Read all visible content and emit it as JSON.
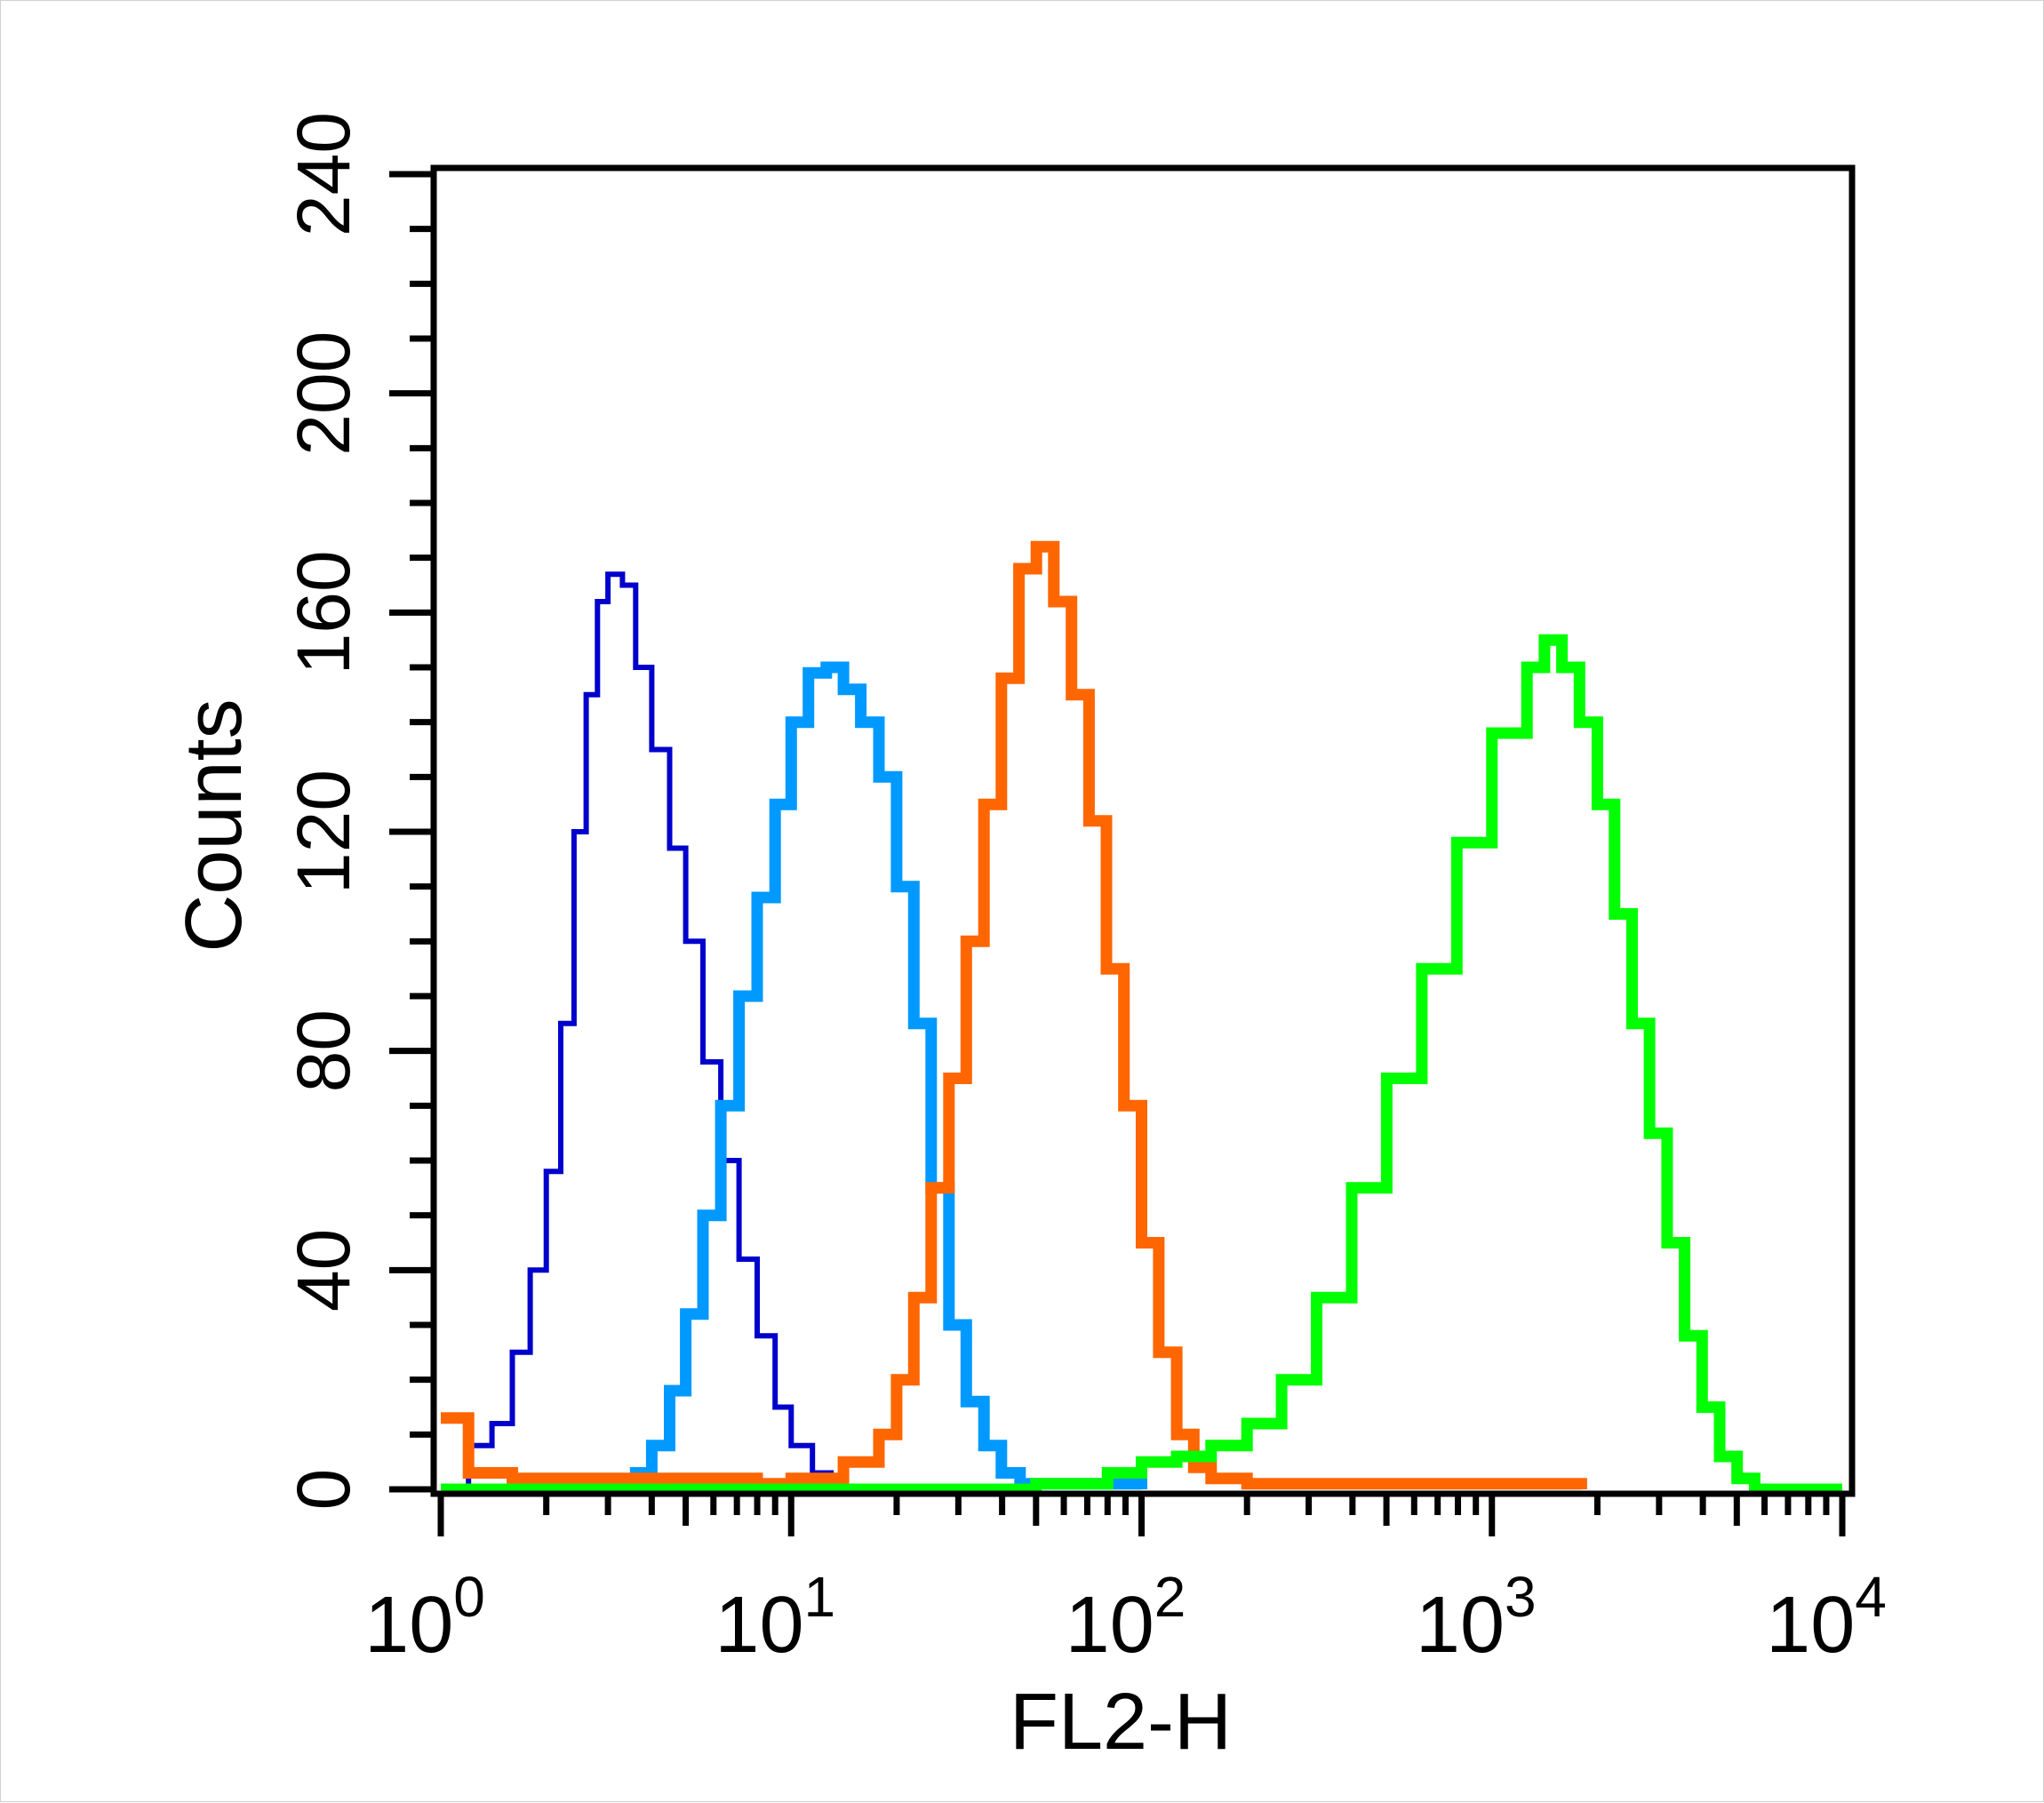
{
  "chart_data": {
    "type": "line",
    "title": "",
    "xlabel": "FL2-H",
    "ylabel": "Counts",
    "x_scale": "log10",
    "xlim": [
      1,
      10000
    ],
    "ylim": [
      0,
      240
    ],
    "grid": false,
    "legend": "none",
    "x_ticks": [
      {
        "base": "10",
        "exp": "0",
        "value": 1
      },
      {
        "base": "10",
        "exp": "1",
        "value": 10
      },
      {
        "base": "10",
        "exp": "2",
        "value": 100
      },
      {
        "base": "10",
        "exp": "3",
        "value": 1000
      },
      {
        "base": "10",
        "exp": "4",
        "value": 10000
      }
    ],
    "y_ticks": [
      {
        "label": "0",
        "value": 0
      },
      {
        "label": "40",
        "value": 40
      },
      {
        "label": "80",
        "value": 80
      },
      {
        "label": "120",
        "value": 120
      },
      {
        "label": "160",
        "value": 160
      },
      {
        "label": "200",
        "value": 200
      },
      {
        "label": "240",
        "value": 240
      }
    ],
    "series": [
      {
        "color": "#0000cc",
        "stroke": "thin",
        "points": [
          [
            1.1,
            0
          ],
          [
            1.2,
            8
          ],
          [
            1.4,
            12
          ],
          [
            1.6,
            25
          ],
          [
            1.8,
            40
          ],
          [
            2.0,
            58
          ],
          [
            2.2,
            85
          ],
          [
            2.4,
            120
          ],
          [
            2.6,
            145
          ],
          [
            2.8,
            162
          ],
          [
            3.0,
            167
          ],
          [
            3.3,
            165
          ],
          [
            3.6,
            150
          ],
          [
            4.0,
            135
          ],
          [
            4.5,
            117
          ],
          [
            5.0,
            100
          ],
          [
            5.6,
            78
          ],
          [
            6.3,
            60
          ],
          [
            7.1,
            42
          ],
          [
            8.0,
            28
          ],
          [
            9.0,
            15
          ],
          [
            10.0,
            8
          ],
          [
            11.5,
            3
          ],
          [
            13.0,
            0
          ]
        ]
      },
      {
        "color": "#0099ff",
        "stroke": "thick",
        "points": [
          [
            3.0,
            0
          ],
          [
            3.6,
            3
          ],
          [
            4.0,
            8
          ],
          [
            4.5,
            18
          ],
          [
            5.0,
            32
          ],
          [
            5.6,
            50
          ],
          [
            6.3,
            70
          ],
          [
            7.1,
            90
          ],
          [
            8.0,
            108
          ],
          [
            9.0,
            125
          ],
          [
            10.0,
            140
          ],
          [
            11.2,
            149
          ],
          [
            12.6,
            150
          ],
          [
            14.1,
            146
          ],
          [
            15.8,
            140
          ],
          [
            17.8,
            130
          ],
          [
            20.0,
            110
          ],
          [
            22.4,
            85
          ],
          [
            25.1,
            55
          ],
          [
            28.2,
            30
          ],
          [
            31.6,
            16
          ],
          [
            35.5,
            8
          ],
          [
            39.8,
            3
          ],
          [
            45,
            1
          ],
          [
            60,
            1
          ],
          [
            80,
            1
          ],
          [
            100,
            0
          ]
        ]
      },
      {
        "color": "#ff6600",
        "stroke": "thick",
        "points": [
          [
            1.0,
            13
          ],
          [
            1.1,
            13
          ],
          [
            1.2,
            3
          ],
          [
            1.6,
            2
          ],
          [
            5,
            2
          ],
          [
            8,
            1
          ],
          [
            10,
            2
          ],
          [
            14.1,
            5
          ],
          [
            17.8,
            10
          ],
          [
            20.0,
            20
          ],
          [
            22.4,
            35
          ],
          [
            25.1,
            55
          ],
          [
            28.2,
            75
          ],
          [
            31.6,
            100
          ],
          [
            35.5,
            125
          ],
          [
            39.8,
            148
          ],
          [
            44.7,
            168
          ],
          [
            50.1,
            172
          ],
          [
            56.2,
            162
          ],
          [
            63.1,
            145
          ],
          [
            70.8,
            122
          ],
          [
            79.4,
            95
          ],
          [
            89.1,
            70
          ],
          [
            100,
            45
          ],
          [
            112,
            25
          ],
          [
            126,
            10
          ],
          [
            141,
            4
          ],
          [
            158,
            2
          ],
          [
            200,
            1
          ],
          [
            1000,
            1
          ],
          [
            1800,
            0
          ]
        ]
      },
      {
        "color": "#00ff00",
        "stroke": "thick",
        "points": [
          [
            1.0,
            0
          ],
          [
            50,
            1
          ],
          [
            80,
            3
          ],
          [
            100,
            5
          ],
          [
            126,
            6
          ],
          [
            158,
            8
          ],
          [
            200,
            12
          ],
          [
            251,
            20
          ],
          [
            316,
            35
          ],
          [
            398,
            55
          ],
          [
            501,
            75
          ],
          [
            631,
            95
          ],
          [
            794,
            118
          ],
          [
            1000,
            138
          ],
          [
            1259,
            150
          ],
          [
            1413,
            155
          ],
          [
            1585,
            150
          ],
          [
            1778,
            140
          ],
          [
            2000,
            125
          ],
          [
            2239,
            105
          ],
          [
            2512,
            85
          ],
          [
            2818,
            65
          ],
          [
            3162,
            45
          ],
          [
            3548,
            28
          ],
          [
            3981,
            15
          ],
          [
            4467,
            6
          ],
          [
            5012,
            2
          ],
          [
            5623,
            0
          ],
          [
            10000,
            0
          ]
        ]
      }
    ]
  }
}
